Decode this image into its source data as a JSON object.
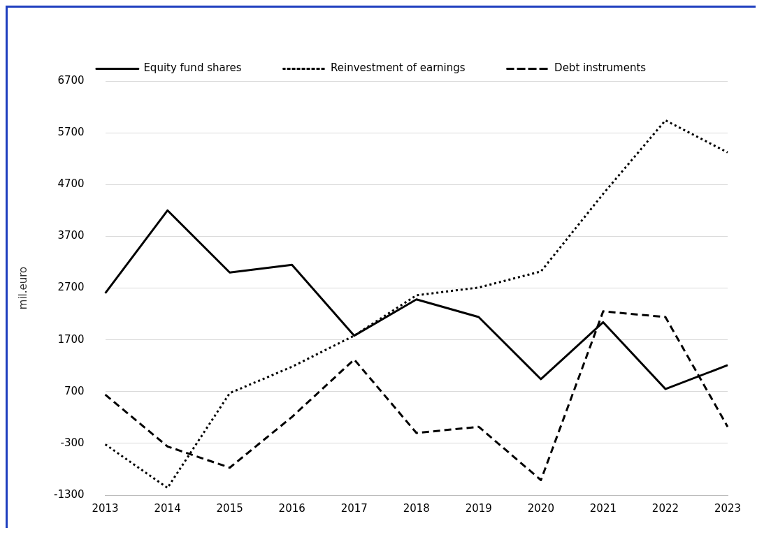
{
  "chart_data": {
    "type": "line",
    "ylabel": "mil.euro",
    "categories": [
      "2013",
      "2014",
      "2015",
      "2016",
      "2017",
      "2018",
      "2019",
      "2020",
      "2021",
      "2022",
      "2023"
    ],
    "series": [
      {
        "name": "Equity fund shares",
        "color": "#000000",
        "line_style": "solid",
        "values": [
          2600,
          4200,
          3000,
          3150,
          1780,
          2480,
          2140,
          940,
          2040,
          750,
          1210
        ]
      },
      {
        "name": "Reinvestment of earnings",
        "color": "#000000",
        "line_style": "dotted",
        "values": [
          -320,
          -1160,
          670,
          1180,
          1780,
          2560,
          2710,
          3020,
          4520,
          5940,
          5320
        ]
      },
      {
        "name": "Debt instruments",
        "color": "#000000",
        "line_style": "dashed",
        "values": [
          640,
          -360,
          -770,
          210,
          1320,
          -100,
          20,
          -1010,
          2250,
          2140,
          20
        ]
      }
    ],
    "ylim": [
      -1300,
      6700
    ],
    "yticks": [
      -1300,
      -300,
      700,
      1700,
      2700,
      3700,
      4700,
      5700,
      6700
    ],
    "grid": "y",
    "legend": "top",
    "marker": "none"
  }
}
